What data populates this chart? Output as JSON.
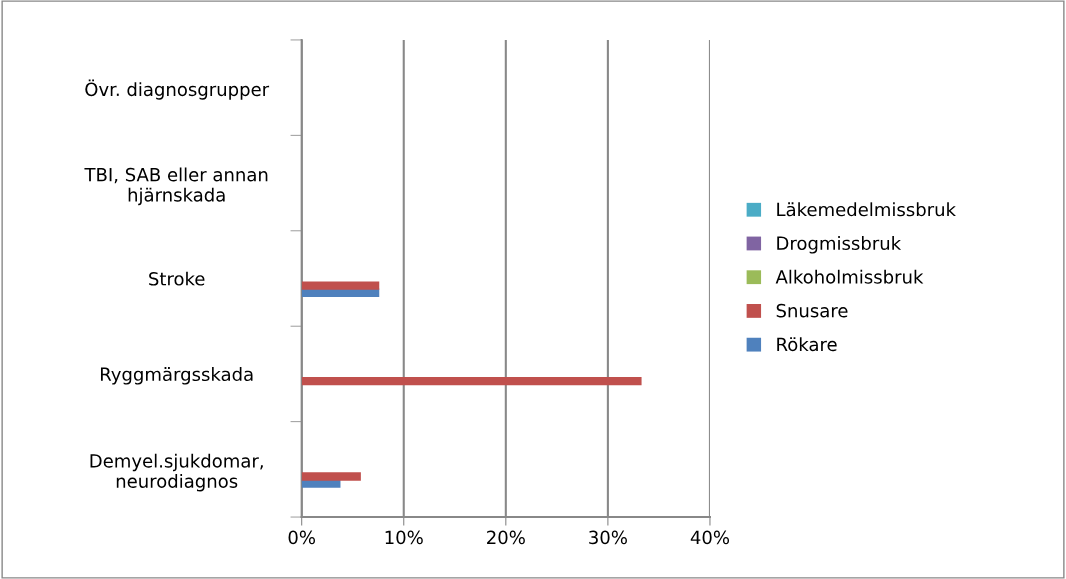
{
  "chart_data": {
    "type": "bar",
    "orientation": "horizontal",
    "categories": [
      "Övr. diagnosgrupper",
      "TBI, SAB eller annan\nhjärnskada",
      "Stroke",
      "Ryggmärgsskada",
      "Demyel.sjukdomar,\nneurodiagnos"
    ],
    "series": [
      {
        "name": "Rökare",
        "color": "#4f81bd",
        "values": [
          0,
          0,
          7.6,
          0,
          3.8
        ]
      },
      {
        "name": "Snusare",
        "color": "#c0504d",
        "values": [
          0,
          0,
          7.6,
          33.3,
          5.8
        ]
      },
      {
        "name": "Alkoholmissbruk",
        "color": "#9bbb59",
        "values": [
          0,
          0,
          0,
          0,
          0
        ]
      },
      {
        "name": "Drogmissbruk",
        "color": "#8064a2",
        "values": [
          0,
          0,
          0,
          0,
          0
        ]
      },
      {
        "name": "Läkemedelmissbruk",
        "color": "#4bacc6",
        "values": [
          0,
          0,
          0,
          0,
          0
        ]
      }
    ],
    "xlim": [
      0,
      40
    ],
    "xticks": [
      {
        "value": 0,
        "label": "0%"
      },
      {
        "value": 10,
        "label": "10%"
      },
      {
        "value": 20,
        "label": "20%"
      },
      {
        "value": 30,
        "label": "30%"
      },
      {
        "value": 40,
        "label": "40%"
      }
    ],
    "grid": "x",
    "legend": "right"
  }
}
